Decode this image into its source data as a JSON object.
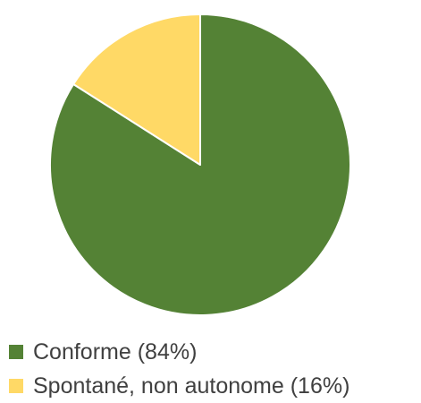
{
  "chart_data": {
    "type": "pie",
    "title": "",
    "slices": [
      {
        "label": "Conforme (84%)",
        "value": 84,
        "color": "#548235"
      },
      {
        "label": "Spontané, non autonome (16%)",
        "value": 16,
        "color": "#FFD966"
      }
    ],
    "start_angle_deg": 0,
    "direction": "clockwise",
    "slice_border_color": "#ffffff",
    "legend_position": "bottom-left"
  }
}
